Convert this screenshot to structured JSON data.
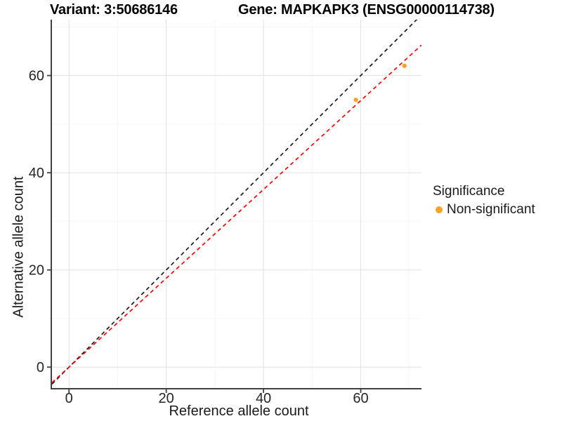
{
  "chart_data": {
    "type": "scatter",
    "titles": {
      "variant": "Variant: 3:50686146",
      "gene": "Gene: MAPKAPK3 (ENSG00000114738)"
    },
    "xlabel": "Reference allele count",
    "ylabel": "Alternative allele count",
    "xlim": [
      -3.5,
      72.5
    ],
    "ylim": [
      -4.3,
      71.5
    ],
    "x_major_ticks": [
      0,
      20,
      40,
      60
    ],
    "x_minor_ticks": [
      10,
      30,
      50,
      70
    ],
    "y_major_ticks": [
      0,
      20,
      40,
      60
    ],
    "y_minor_ticks": [
      10,
      30,
      50,
      70
    ],
    "grid": true,
    "series": [
      {
        "name": "Non-significant",
        "color": "#F9A12A",
        "points": [
          {
            "x": 59,
            "y": 55
          },
          {
            "x": 69,
            "y": 62
          }
        ]
      }
    ],
    "lines": [
      {
        "name": "identity-line",
        "slope": 1,
        "intercept": 0,
        "color": "#1A1A1A",
        "style": "dashed"
      },
      {
        "name": "fit-line",
        "slope": 0.914,
        "intercept": 0,
        "color": "#FF0000",
        "style": "dashed"
      }
    ],
    "legend": {
      "title": "Significance",
      "position": "right",
      "items": [
        {
          "label": "Non-significant",
          "color": "#F9A12A"
        }
      ]
    },
    "style": {
      "grid_major_color": "#E4E4E4",
      "grid_minor_color": "#F4F4F4",
      "axis_line_color": "#404040",
      "tick_label_color": "#262626",
      "point_color": "#F9A12A"
    }
  }
}
